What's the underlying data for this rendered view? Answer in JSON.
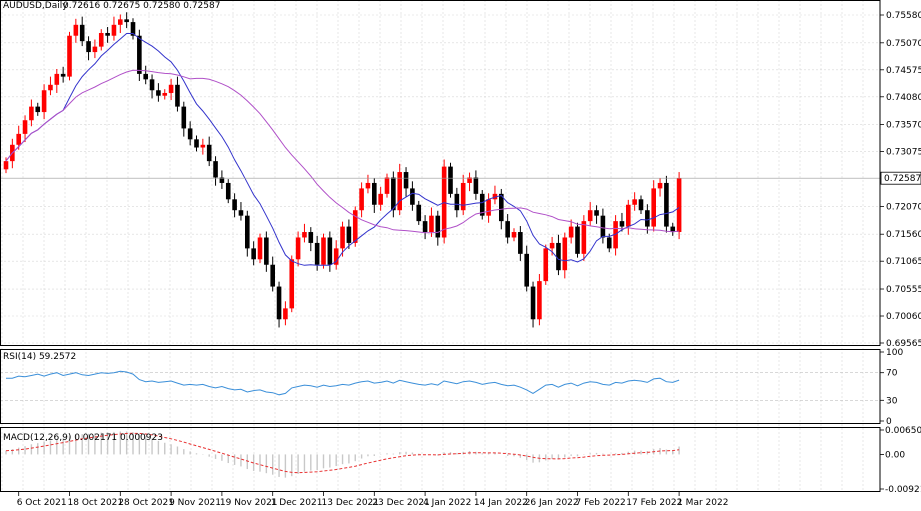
{
  "chart_data": {
    "type": "candlestick",
    "symbol_header": "AUDUSD,Daily",
    "ohlc_header": "0.72616 0.72675 0.72580 0.72587",
    "current_price": "0.72587",
    "price_ticks": [
      "0.75580",
      "0.75070",
      "0.74575",
      "0.74080",
      "0.73570",
      "0.73075",
      "0.72070",
      "0.71560",
      "0.71065",
      "0.70555",
      "0.70060",
      "0.69565"
    ],
    "price_range": [
      0.6956,
      0.7585
    ],
    "date_labels": [
      {
        "label": "6 Oct 2021",
        "i": 2
      },
      {
        "label": "18 Oct 2021",
        "i": 10
      },
      {
        "label": "28 Oct 2021",
        "i": 18
      },
      {
        "label": "9 Nov 2021",
        "i": 26
      },
      {
        "label": "19 Nov 2021",
        "i": 34
      },
      {
        "label": "1 Dec 2021",
        "i": 42
      },
      {
        "label": "13 Dec 2021",
        "i": 50
      },
      {
        "label": "23 Dec 2021",
        "i": 58
      },
      {
        "label": "4 Jan 2022",
        "i": 66
      },
      {
        "label": "14 Jan 2022",
        "i": 74
      },
      {
        "label": "26 Jan 2022",
        "i": 82
      },
      {
        "label": "7 Feb 2022",
        "i": 90
      },
      {
        "label": "17 Feb 2022",
        "i": 98
      },
      {
        "label": "1 Mar 2022",
        "i": 106
      }
    ],
    "closes": [
      0.729,
      0.732,
      0.734,
      0.7365,
      0.739,
      0.738,
      0.742,
      0.743,
      0.745,
      0.7445,
      0.752,
      0.754,
      0.751,
      0.749,
      0.75,
      0.7525,
      0.752,
      0.754,
      0.755,
      0.7545,
      0.752,
      0.745,
      0.744,
      0.742,
      0.741,
      0.7415,
      0.743,
      0.739,
      0.735,
      0.733,
      0.7315,
      0.732,
      0.729,
      0.726,
      0.725,
      0.722,
      0.72,
      0.719,
      0.713,
      0.711,
      0.715,
      0.71,
      0.706,
      0.7,
      0.702,
      0.711,
      0.715,
      0.716,
      0.714,
      0.71,
      0.715,
      0.71,
      0.713,
      0.717,
      0.714,
      0.72,
      0.724,
      0.725,
      0.721,
      0.723,
      0.726,
      0.72,
      0.727,
      0.724,
      0.721,
      0.718,
      0.716,
      0.719,
      0.715,
      0.728,
      0.723,
      0.72,
      0.725,
      0.726,
      0.723,
      0.719,
      0.722,
      0.723,
      0.718,
      0.715,
      0.716,
      0.712,
      0.706,
      0.7,
      0.707,
      0.713,
      0.714,
      0.709,
      0.715,
      0.717,
      0.712,
      0.718,
      0.72,
      0.719,
      0.715,
      0.713,
      0.718,
      0.717,
      0.721,
      0.722,
      0.72,
      0.717,
      0.724,
      0.725,
      0.717,
      0.716,
      0.7259
    ],
    "rsi_label": "RSI(14) 59.2572",
    "rsi_ticks": [
      "100",
      "70",
      "30",
      "0"
    ],
    "rsi_values": [
      62,
      62,
      65,
      64,
      66,
      68,
      65,
      68,
      70,
      66,
      68,
      70,
      67,
      66,
      68,
      70,
      69,
      70,
      72,
      71,
      68,
      60,
      57,
      58,
      56,
      57,
      58,
      55,
      52,
      53,
      52,
      53,
      50,
      48,
      50,
      47,
      45,
      46,
      42,
      44,
      45,
      42,
      41,
      38,
      40,
      48,
      50,
      52,
      51,
      49,
      52,
      50,
      51,
      53,
      52,
      55,
      57,
      58,
      55,
      56,
      58,
      55,
      59,
      57,
      55,
      53,
      52,
      54,
      52,
      58,
      56,
      54,
      57,
      58,
      56,
      53,
      55,
      56,
      53,
      51,
      52,
      49,
      45,
      40,
      46,
      52,
      53,
      49,
      53,
      55,
      51,
      55,
      57,
      56,
      53,
      52,
      56,
      55,
      58,
      59,
      58,
      56,
      61,
      62,
      57,
      56,
      59.26
    ],
    "macd_label": "MACD(12,26,9) 0.002171 0.000923",
    "macd_ticks": [
      "0.006501",
      "0.00",
      "-0.009212"
    ],
    "macd_range": [
      -0.009212,
      0.006501
    ],
    "macd_hist": [
      0.001,
      0.0014,
      0.0018,
      0.0022,
      0.0027,
      0.003,
      0.0034,
      0.0037,
      0.0041,
      0.0043,
      0.0048,
      0.0052,
      0.0054,
      0.0055,
      0.0056,
      0.0058,
      0.0059,
      0.006,
      0.0061,
      0.0061,
      0.0059,
      0.0054,
      0.0048,
      0.0042,
      0.0036,
      0.0031,
      0.0027,
      0.0021,
      0.0014,
      0.0008,
      0.0003,
      -0.0001,
      -0.0006,
      -0.0012,
      -0.0017,
      -0.0023,
      -0.0028,
      -0.0032,
      -0.0039,
      -0.0044,
      -0.0046,
      -0.005,
      -0.0054,
      -0.006,
      -0.0062,
      -0.0058,
      -0.0052,
      -0.0046,
      -0.0043,
      -0.0042,
      -0.0037,
      -0.0035,
      -0.0031,
      -0.0026,
      -0.0024,
      -0.0018,
      -0.0011,
      -0.0005,
      -0.0004,
      -0.0001,
      0.0003,
      0.0002,
      0.0006,
      0.0007,
      0.0005,
      0.0002,
      -0.0001,
      0.0,
      -0.0003,
      0.0005,
      0.0006,
      0.0004,
      0.0007,
      0.0009,
      0.0007,
      0.0003,
      0.0003,
      0.0004,
      0.0,
      -0.0004,
      -0.0005,
      -0.0009,
      -0.0015,
      -0.0022,
      -0.0021,
      -0.0016,
      -0.0012,
      -0.0013,
      -0.0008,
      -0.0004,
      -0.0005,
      -0.0001,
      0.0003,
      0.0004,
      0.0002,
      0.0,
      0.0003,
      0.0004,
      0.0007,
      0.001,
      0.001,
      0.0009,
      0.0014,
      0.0017,
      0.0013,
      0.0011,
      0.0021
    ],
    "colors": {
      "bull": "#ff0000",
      "bear": "#000000",
      "ma_fast": "#3333cc",
      "ma_slow": "#b050c8",
      "rsi": "#3b8fd9",
      "macd_signal": "#e83030",
      "macd_hist": "#c8c8c8",
      "grid": "#d7d7d7",
      "frame": "#000000"
    }
  }
}
